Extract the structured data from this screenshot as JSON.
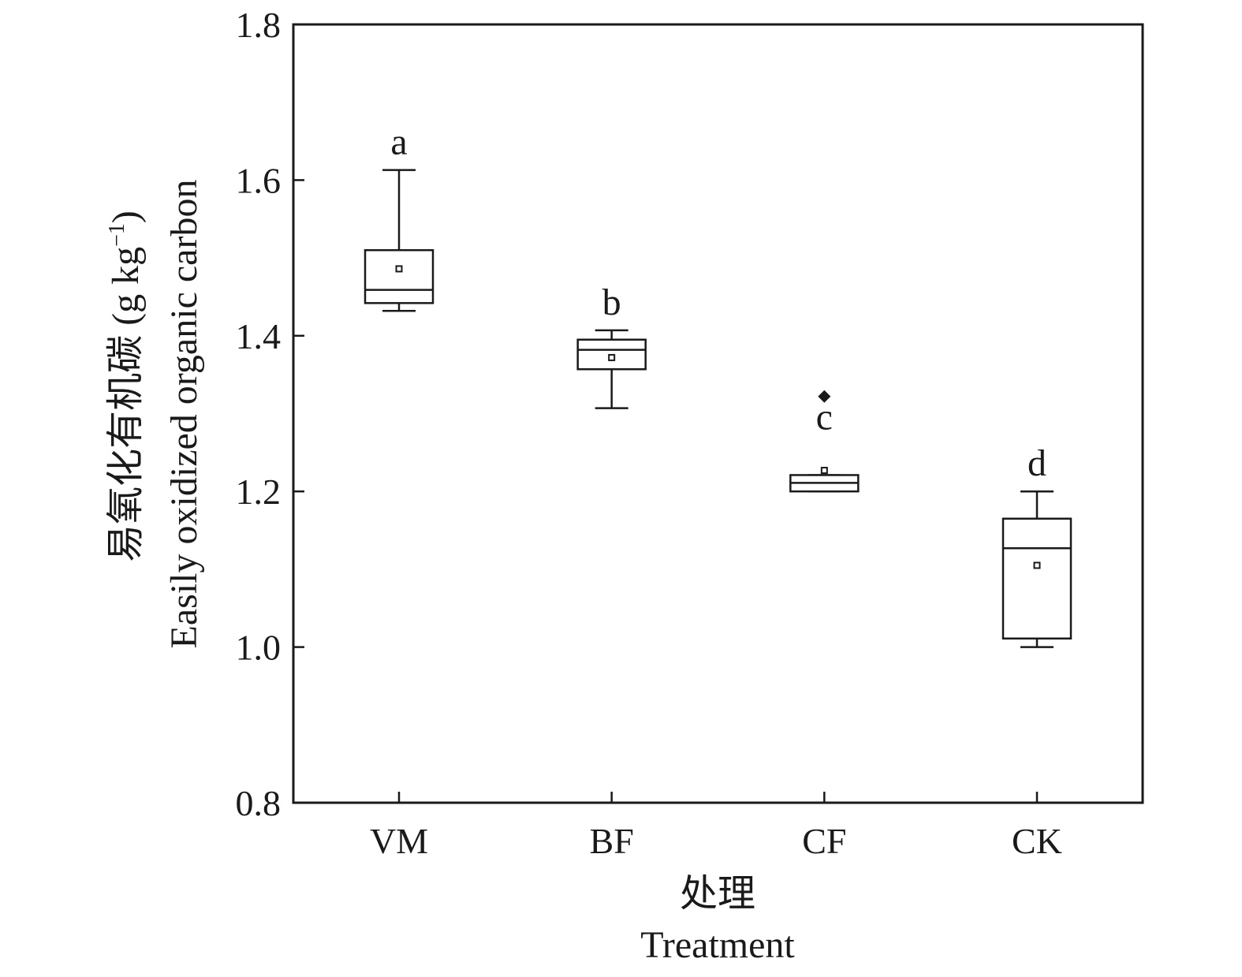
{
  "chart_data": {
    "type": "box",
    "ylabel_cn": "易氧化有机碳 (g kg",
    "ylabel_sup": "−1",
    "ylabel_close": ")",
    "ylabel_en": "Easily oxidized organic carbon",
    "xlabel_cn": "处理",
    "xlabel_en": "Treatment",
    "ylim": [
      0.8,
      1.8
    ],
    "yticks": [
      0.8,
      1.0,
      1.2,
      1.4,
      1.6,
      1.8
    ],
    "ytick_labels": [
      "0.8",
      "1.0",
      "1.2",
      "1.4",
      "1.6",
      "1.8"
    ],
    "categories": [
      "VM",
      "BF",
      "CF",
      "CK"
    ],
    "boxes": [
      {
        "name": "VM",
        "whisker_low": 1.432,
        "q1": 1.442,
        "median": 1.459,
        "q3": 1.51,
        "whisker_high": 1.613,
        "mean": 1.486,
        "outliers": [],
        "letter": "a"
      },
      {
        "name": "BF",
        "whisker_low": 1.307,
        "q1": 1.357,
        "median": 1.382,
        "q3": 1.395,
        "whisker_high": 1.407,
        "mean": 1.372,
        "outliers": [],
        "letter": "b"
      },
      {
        "name": "CF",
        "whisker_low": 1.2,
        "q1": 1.2,
        "median": 1.211,
        "q3": 1.221,
        "whisker_high": 1.221,
        "mean": 1.227,
        "outliers": [
          1.322
        ],
        "letter": "c"
      },
      {
        "name": "CK",
        "whisker_low": 1.0,
        "q1": 1.011,
        "median": 1.127,
        "q3": 1.165,
        "whisker_high": 1.2,
        "mean": 1.105,
        "outliers": [],
        "letter": "d"
      }
    ]
  }
}
